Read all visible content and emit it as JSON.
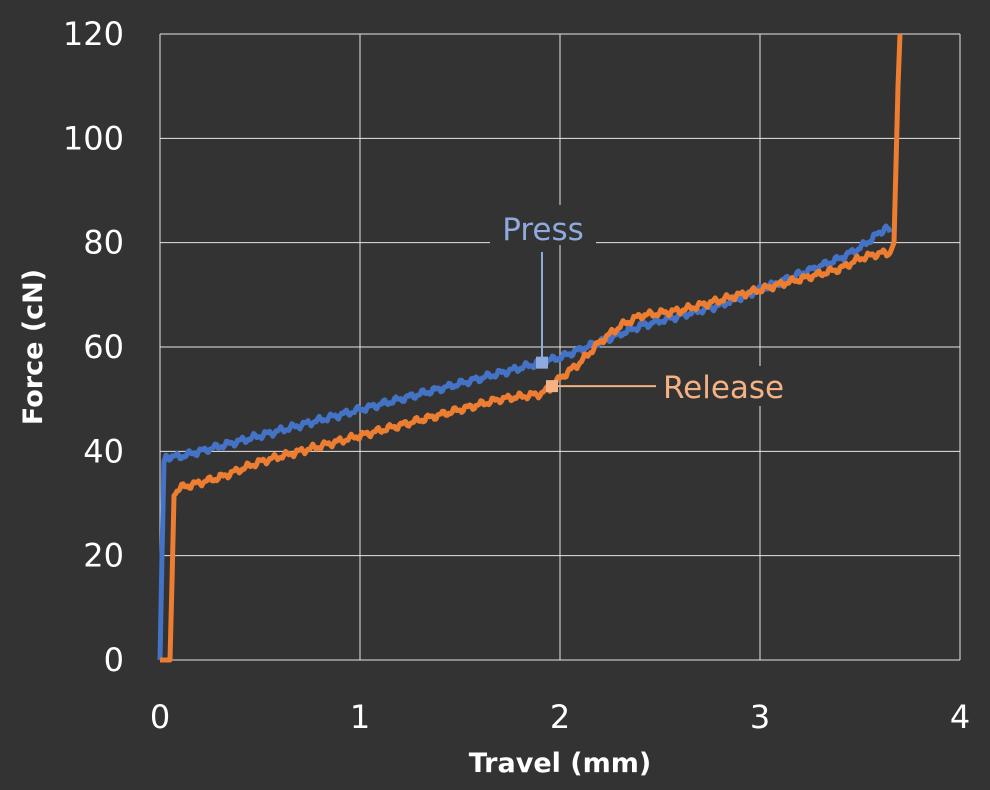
{
  "chart_data": {
    "type": "line",
    "title": "",
    "xlabel": "Travel (mm)",
    "ylabel": "Force (cN)",
    "xlim": [
      0,
      4
    ],
    "ylim": [
      0,
      120
    ],
    "xticks": [
      0,
      1,
      2,
      3,
      4
    ],
    "yticks": [
      0,
      20,
      40,
      60,
      80,
      100,
      120
    ],
    "xtick_labels": [
      "0",
      "1",
      "2",
      "3",
      "4"
    ],
    "ytick_labels": [
      "0",
      "20",
      "40",
      "60",
      "80",
      "100",
      "120"
    ],
    "grid": true,
    "legend": "none",
    "background": "#333333",
    "grid_color": "#e6e6e6",
    "text_color": "#ffffff",
    "series": [
      {
        "name": "Press",
        "color": "#4472c4",
        "x": [
          0.0,
          0.01,
          0.02,
          0.03,
          0.1,
          0.2,
          0.3,
          0.5,
          0.7,
          0.9,
          1.1,
          1.3,
          1.5,
          1.7,
          1.9,
          2.0,
          2.2,
          2.4,
          2.6,
          2.8,
          3.0,
          3.2,
          3.4,
          3.5,
          3.6,
          3.63,
          3.65
        ],
        "y": [
          0,
          20,
          38,
          39,
          39,
          40,
          41,
          43,
          45,
          47,
          49,
          51,
          53,
          55,
          57,
          58,
          61,
          64,
          66,
          68,
          71,
          74,
          77,
          79,
          82,
          83,
          82
        ]
      },
      {
        "name": "Release",
        "color": "#ed7d31",
        "x": [
          0.0,
          0.05,
          0.06,
          0.07,
          0.1,
          0.2,
          0.3,
          0.5,
          0.7,
          0.9,
          1.1,
          1.3,
          1.5,
          1.7,
          1.9,
          1.95,
          2.0,
          2.1,
          2.2,
          2.3,
          2.4,
          2.6,
          2.8,
          3.0,
          3.2,
          3.4,
          3.5,
          3.6,
          3.65,
          3.67,
          3.68,
          3.69,
          3.7
        ],
        "y": [
          0,
          0,
          15,
          32,
          33,
          34,
          35,
          38,
          40,
          42,
          44,
          46,
          48,
          50,
          51,
          52,
          54,
          57,
          61,
          64,
          66,
          67,
          69,
          71,
          73,
          75,
          77,
          78,
          78,
          80,
          95,
          110,
          120
        ]
      }
    ],
    "annotations": [
      {
        "text": "Press",
        "series": 0,
        "point": [
          1.91,
          57
        ],
        "color": "#8faadc"
      },
      {
        "text": "Release",
        "series": 1,
        "point": [
          1.96,
          52.5
        ],
        "color": "#f4b183"
      }
    ]
  }
}
